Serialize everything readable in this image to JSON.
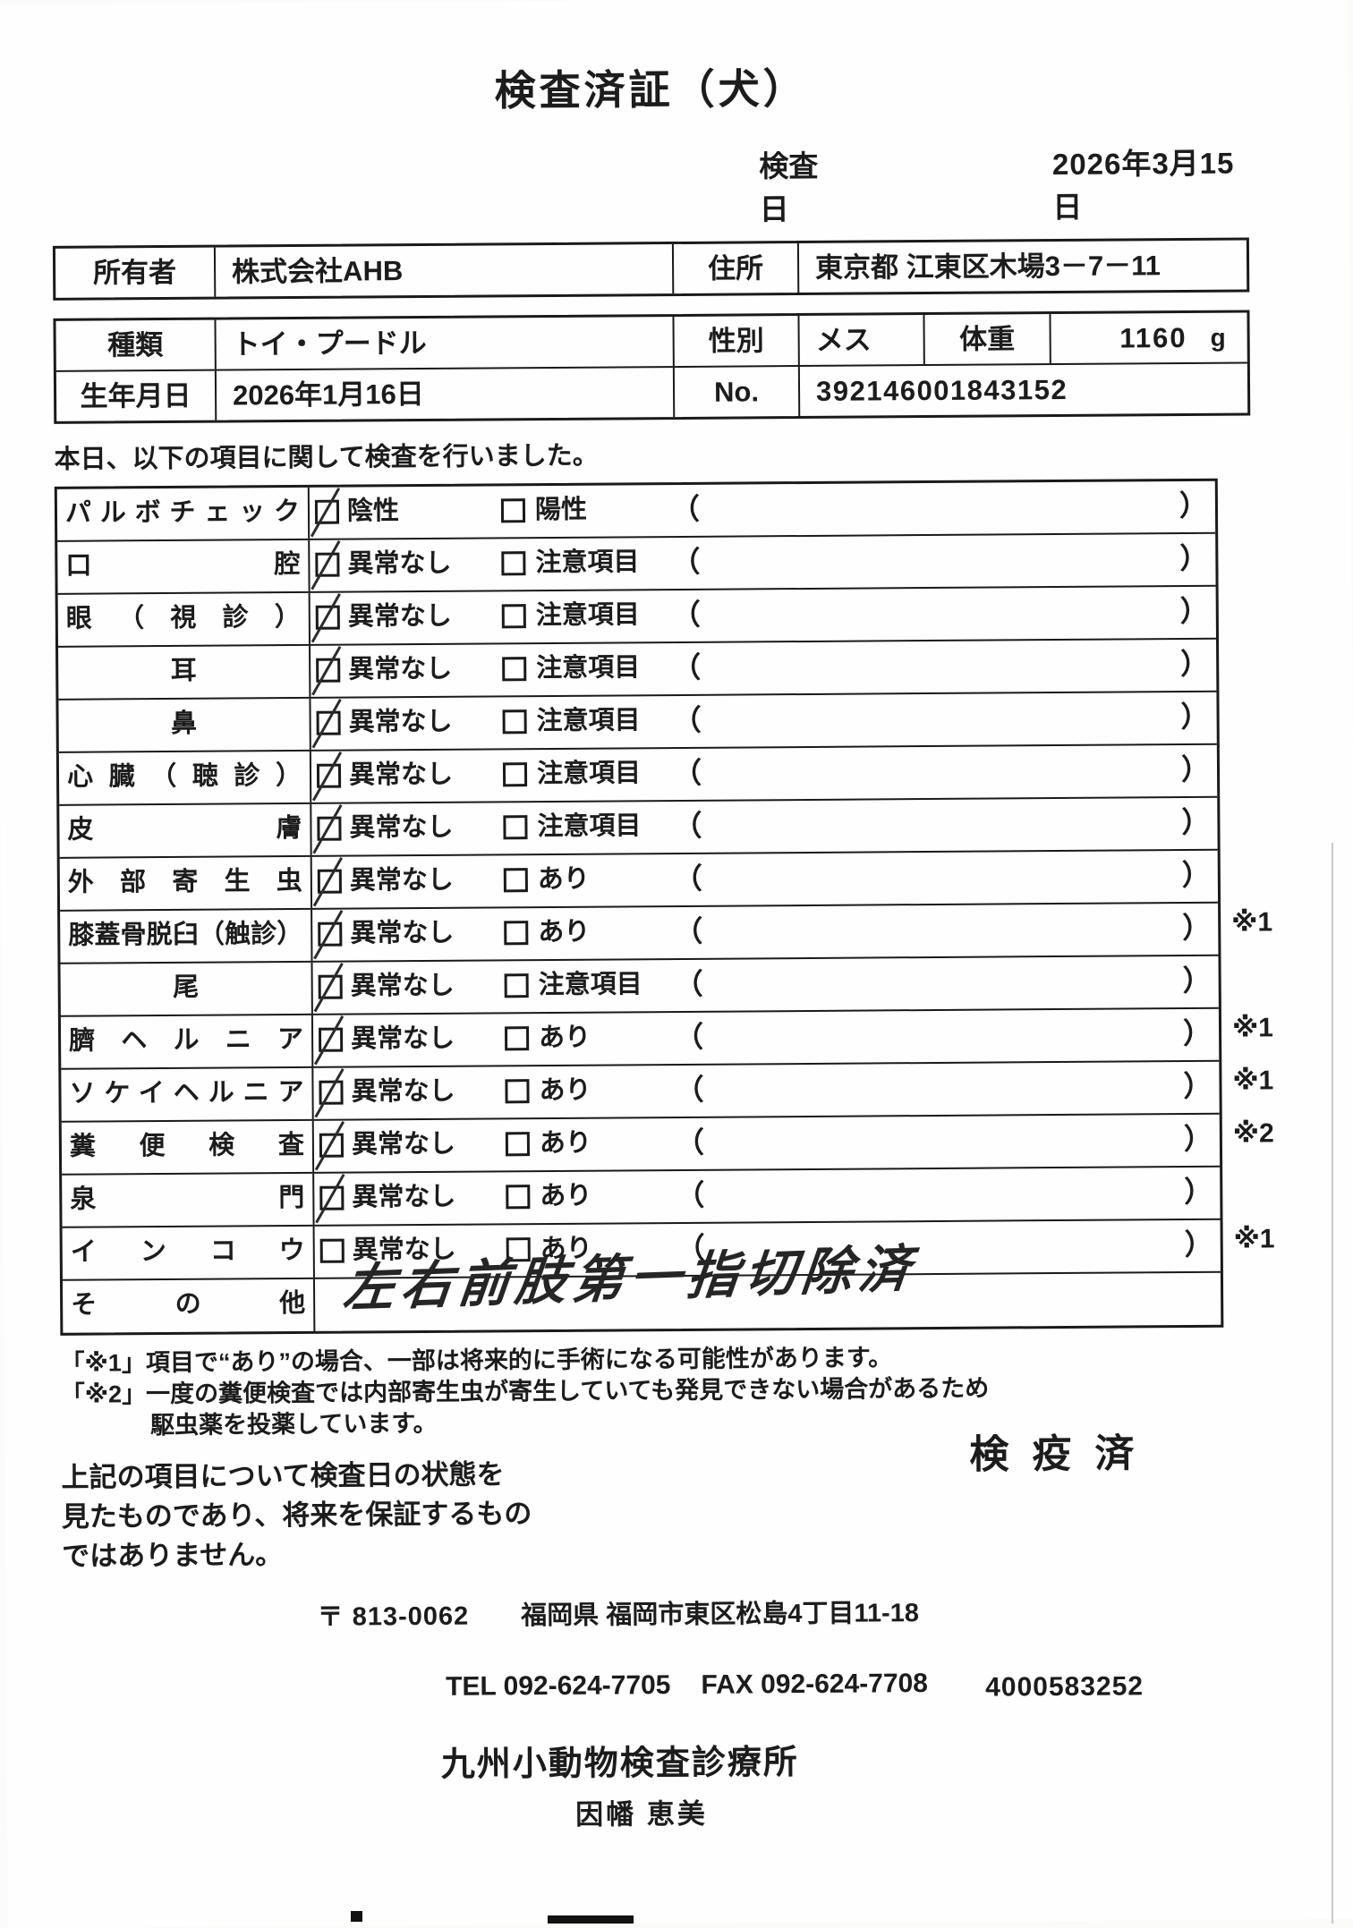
{
  "title": "検査済証（犬）",
  "inspection_date": {
    "label": "検査日",
    "value": "2026年3月15日"
  },
  "owner": {
    "label": "所有者",
    "value": "株式会社AHB",
    "address_label": "住所",
    "address_value": "東京都 江東区木場3－7－11"
  },
  "pet": {
    "type_label": "種類",
    "type_value": "トイ・プードル",
    "sex_label": "性別",
    "sex_value": "メス",
    "weight_label": "体重",
    "weight_value": "1160",
    "weight_unit": "g",
    "birth_label": "生年月日",
    "birth_value": "2026年1月16日",
    "no_label": "No.",
    "no_value": "392146001843152"
  },
  "intro": "本日、以下の項目に関して検査を行いました。",
  "checklist": {
    "paren_open": "（",
    "paren_close": "）",
    "rows": [
      {
        "name": "パルボチェック",
        "opt1": "陰性",
        "opt2": "陽性",
        "checked": true,
        "single": false,
        "note": ""
      },
      {
        "name": "口腔",
        "opt1": "異常なし",
        "opt2": "注意項目",
        "checked": true,
        "single": false,
        "note": ""
      },
      {
        "name": "眼（視診）",
        "opt1": "異常なし",
        "opt2": "注意項目",
        "checked": true,
        "single": false,
        "note": ""
      },
      {
        "name": "耳",
        "opt1": "異常なし",
        "opt2": "注意項目",
        "checked": true,
        "single": true,
        "note": ""
      },
      {
        "name": "鼻",
        "opt1": "異常なし",
        "opt2": "注意項目",
        "checked": true,
        "single": true,
        "note": ""
      },
      {
        "name": "心臓（聴診）",
        "opt1": "異常なし",
        "opt2": "注意項目",
        "checked": true,
        "single": false,
        "note": ""
      },
      {
        "name": "皮膚",
        "opt1": "異常なし",
        "opt2": "注意項目",
        "checked": true,
        "single": false,
        "note": ""
      },
      {
        "name": "外部寄生虫",
        "opt1": "異常なし",
        "opt2": "あり",
        "checked": true,
        "single": false,
        "note": ""
      },
      {
        "name": "膝蓋骨脱臼（触診）",
        "opt1": "異常なし",
        "opt2": "あり",
        "checked": true,
        "single": false,
        "note": "※1"
      },
      {
        "name": "尾",
        "opt1": "異常なし",
        "opt2": "注意項目",
        "checked": true,
        "single": true,
        "note": ""
      },
      {
        "name": "臍ヘルニア",
        "opt1": "異常なし",
        "opt2": "あり",
        "checked": true,
        "single": false,
        "note": "※1"
      },
      {
        "name": "ソケイヘルニア",
        "opt1": "異常なし",
        "opt2": "あり",
        "checked": true,
        "single": false,
        "note": "※1"
      },
      {
        "name": "糞便検査",
        "opt1": "異常なし",
        "opt2": "あり",
        "checked": true,
        "single": false,
        "note": "※2"
      },
      {
        "name": "泉門",
        "opt1": "異常なし",
        "opt2": "あり",
        "checked": true,
        "single": false,
        "note": ""
      },
      {
        "name": "インコウ",
        "opt1": "異常なし",
        "opt2": "あり",
        "checked": false,
        "single": false,
        "note": "※1"
      }
    ],
    "other_label": "その他",
    "other_value": "左右前肢第一指切除済"
  },
  "footnotes": {
    "line1": "「※1」項目で“あり”の場合、一部は将来的に手術になる可能性があります。",
    "line2": "「※2」一度の糞便検査では内部寄生虫が寄生していても発見できない場合があるため",
    "line3": "駆虫薬を投薬しています。"
  },
  "disclaimer": {
    "line1": "上記の項目について検査日の状態を",
    "line2": "見たものであり、将来を保証するもの",
    "line3": "ではありません。"
  },
  "stamp": "検疫済",
  "clinic": {
    "postal": "〒 813-0062",
    "address": "福岡県 福岡市東区松島4丁目11-18",
    "tel": "TEL 092-624-7705",
    "fax": "FAX 092-624-7708",
    "name": "九州小動物検査診療所",
    "examiner": "因幡 恵美",
    "serial": "4000583252"
  }
}
